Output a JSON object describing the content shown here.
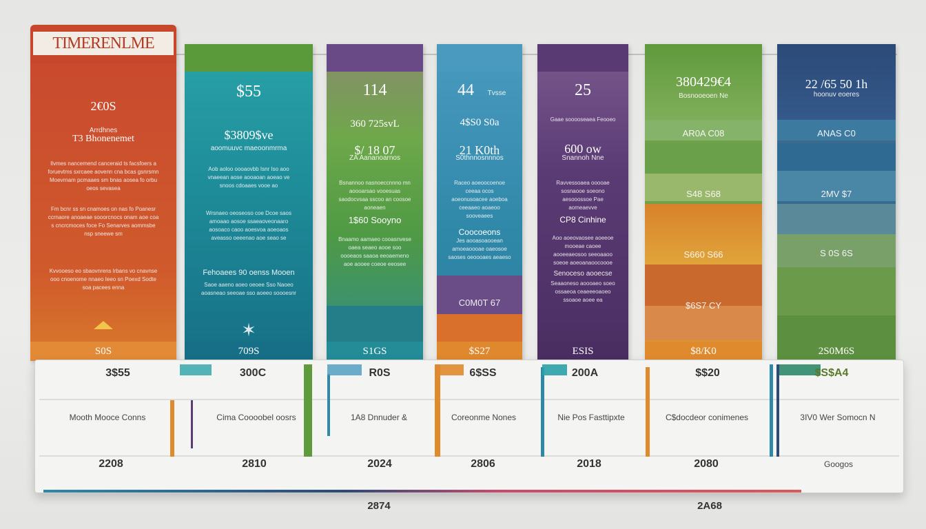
{
  "header_title": "TIMERENLME",
  "columns": [
    {
      "id": "c1",
      "value": "2€0S",
      "sub": "Arrdhnes",
      "title2": "T3 Bhonenemet",
      "para1": "Ilvmes nancemend canceraid ts facsfoers a foruevtms sxrcaee aovenn cna bcas gsnrsmn Moevrnam pcmaaes sm bnas aosea fo orbu oeos sevasea",
      "para2": "Fm bcnr ss sn cnamoes on nas fo Poanesr ccrnaore anoaeae sooorcnocs onam aoe coa s cncrcmoces foce Fo Senarves aommsbe nsp sneewe sm",
      "para3": "Kvvooeso eo sbaovnrens lrbans vo cnavnse ooo cnoenome nnaeo Ieeo sn Poexd Sodte soa pacees enna",
      "footer": "S0S"
    },
    {
      "id": "c2",
      "value": "$55",
      "value2": "$3809$ve",
      "sub2": "aoomuuvc maeoonmrma",
      "para1": "Aob aoloo oooaovbb Isnr Iso aoo vnaeean aose aooaoan aoeao ve snoos cdoaaes vooe ao",
      "para2": "Wrsnaeo oeoseoso coe Dcoe saos amoaao aosoe ssaeaoveonaaro aosoaco caoo aoesvoa aoeoaos aveasso oeeenao aoe seao se",
      "sub3": "Fehoaees 90 oenss Mooen",
      "para3": "Saoe aaeno aoeo oeoee Sso Naoeo aoasneao seeoae sso aoeeo soooesnr",
      "footer": "709S"
    },
    {
      "id": "c3",
      "value": "114",
      "value2": "360 725svL",
      "value3": "$/ 18 07",
      "sub2": "ZA Aananoarnos",
      "para1": "Bsnannoo nasnoeccnnno mn aoooarsao vooesuas saodocvsaa sscoo an coosoe aoneaen",
      "value4": "1$60 Sooyno",
      "para2": "Bnaamo aamaeo cooasnvese oaea seaeo aooe soo oooeaos saaoa eeoaemeno aoe aooee coeoe eeosee",
      "footer": "S1GS"
    },
    {
      "id": "c4",
      "value": "44",
      "sub1": "Tvsse",
      "value2": "4$S0 S0a",
      "value3": "21 K0th",
      "sub2": "S0thnnosnnnos",
      "para1": "Raceo aoeoocoenoe ceeaa ocos aoeonusoacee aoeboa ceeaaeo aoaeoo sooveaees",
      "sub3": "Coocoeons",
      "para2": "Jes aooasoaooean amoeaoooae oaeosoe saoses oeoooaes aeaeso",
      "band": "C0M0T 67",
      "footer": "$S27"
    },
    {
      "id": "c5",
      "value": "25",
      "sub1": "Gaae sooooseaea Feooeo",
      "value2": "600 ow",
      "sub2": "Snannoh Nne",
      "para1": "Ravvessoaea ooooae sosnaooe soeono aesooossoe Pae aomeaevve",
      "sub3": "CP8 Cinhine",
      "para2": "Aoo aoeovaosee aoeeoe mooeae caoee aooeeaeosoo seeoaaoo soeoe aoeoanaoocoooe",
      "sub4": "Senoceso aooecse",
      "para3": "Seaaoneso aoooaeo soeo ossaeoa ceaeeeoaoeo ssoaoe aoee ea",
      "footer": "ESIS"
    },
    {
      "id": "c6",
      "value": "380429€4",
      "sub1": "Bosnooeoen Ne",
      "bands": [
        "AR0A C08",
        "S48 S68",
        "S660 S66",
        "$6S7 CY"
      ],
      "footer": "$8/K0"
    },
    {
      "id": "c7",
      "value": "22 /65 50 1h",
      "sub1": "hoonuv eoeres",
      "bands": [
        "ANAS C0",
        "2MV $7",
        "S 0S 6S"
      ],
      "footer": "2S0M6S"
    }
  ],
  "timeline": {
    "top_years": [
      "3$55",
      "300C",
      "R0S",
      "6$SS",
      "200A",
      "$$20",
      "$S$A4"
    ],
    "labels": [
      "Mooth Mooce Conns",
      "Cima Coooobel oosrs",
      "1A8 Dnnuder &",
      "Coreonme Nones",
      "Nie Pos Fasttipxte",
      "C$docdeor conimenes",
      "3IV0 Wer Somocn N"
    ],
    "bottom_years": [
      "2208",
      "2810",
      "2024",
      "2806",
      "2018",
      "2080",
      "Googos"
    ]
  },
  "axis_years": [
    "2874",
    "2A68"
  ],
  "colors": {
    "red": "#c94a2e",
    "teal": "#1f8f9b",
    "green": "#5f9a3c",
    "blue": "#3a8fb0",
    "purple": "#5b3b74",
    "olive": "#6fa04a",
    "navy": "#2c4a78",
    "orange": "#d9822b"
  }
}
